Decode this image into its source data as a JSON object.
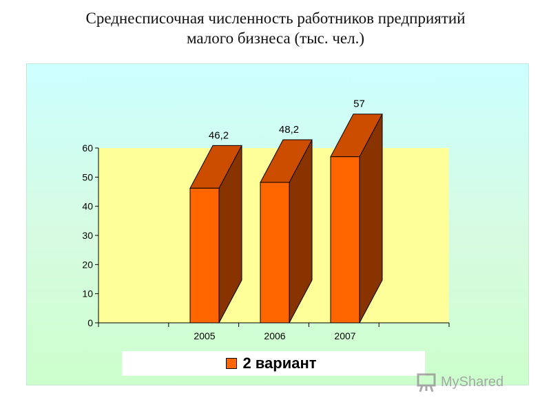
{
  "slide": {
    "title_line1": "Среднесписочная численность работников предприятий",
    "title_line2": "малого бизнеса (тыс. чел.)"
  },
  "chart_data": {
    "type": "bar",
    "categories": [
      "2005",
      "2006",
      "2007"
    ],
    "series": [
      {
        "name": "2 вариант",
        "values": [
          46.2,
          48.2,
          57
        ],
        "labels": [
          "46,2",
          "48,2",
          "57"
        ]
      }
    ],
    "ylim": [
      0,
      60
    ],
    "yticks": [
      0,
      10,
      20,
      30,
      40,
      50,
      60
    ],
    "grid": false,
    "legend_position": "bottom",
    "colors": {
      "bar_front": "#ff6600",
      "bar_top": "#cc4c00",
      "bar_side": "#883300",
      "plot_background": "#ffff99"
    }
  },
  "watermark": {
    "text": "MyShared"
  }
}
